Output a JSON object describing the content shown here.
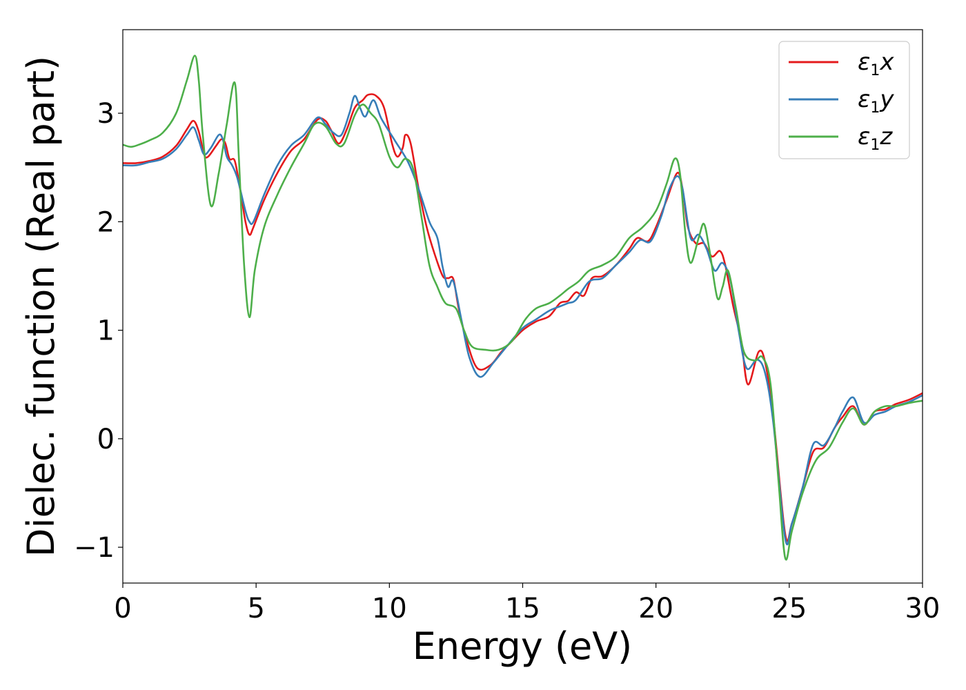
{
  "chart_data": {
    "type": "line",
    "xlabel": "Energy (eV)",
    "ylabel": "Dielec. function (Real part)",
    "xlim": [
      0,
      30
    ],
    "ylim": [
      -1.33,
      3.77
    ],
    "xticks": [
      0,
      5,
      10,
      15,
      20,
      25,
      30
    ],
    "yticks": [
      -1,
      0,
      1,
      2,
      3
    ],
    "grid": false,
    "legend_position": "top-right",
    "series": [
      {
        "name": "ε1x",
        "legend": {
          "sym": "ε",
          "sub": "1",
          "var": "x"
        },
        "color": "#e41a1c",
        "points": [
          [
            0,
            2.54
          ],
          [
            0.5,
            2.54
          ],
          [
            1,
            2.56
          ],
          [
            1.5,
            2.6
          ],
          [
            2,
            2.7
          ],
          [
            2.4,
            2.85
          ],
          [
            2.65,
            2.93
          ],
          [
            2.85,
            2.83
          ],
          [
            3.05,
            2.62
          ],
          [
            3.2,
            2.6
          ],
          [
            3.5,
            2.7
          ],
          [
            3.7,
            2.76
          ],
          [
            3.85,
            2.72
          ],
          [
            4,
            2.58
          ],
          [
            4.2,
            2.56
          ],
          [
            4.4,
            2.3
          ],
          [
            4.6,
            2.0
          ],
          [
            4.75,
            1.88
          ],
          [
            4.9,
            1.95
          ],
          [
            5.3,
            2.2
          ],
          [
            5.8,
            2.45
          ],
          [
            6.3,
            2.65
          ],
          [
            6.8,
            2.76
          ],
          [
            7.3,
            2.94
          ],
          [
            7.6,
            2.93
          ],
          [
            7.8,
            2.85
          ],
          [
            8.1,
            2.72
          ],
          [
            8.4,
            2.85
          ],
          [
            8.7,
            3.05
          ],
          [
            9,
            3.12
          ],
          [
            9.2,
            3.17
          ],
          [
            9.5,
            3.16
          ],
          [
            9.8,
            3.05
          ],
          [
            10.1,
            2.72
          ],
          [
            10.3,
            2.6
          ],
          [
            10.5,
            2.68
          ],
          [
            10.6,
            2.8
          ],
          [
            10.8,
            2.72
          ],
          [
            11.1,
            2.3
          ],
          [
            11.4,
            1.95
          ],
          [
            11.7,
            1.7
          ],
          [
            12.0,
            1.5
          ],
          [
            12.2,
            1.48
          ],
          [
            12.4,
            1.47
          ],
          [
            12.6,
            1.2
          ],
          [
            12.9,
            0.9
          ],
          [
            13.3,
            0.65
          ],
          [
            13.8,
            0.68
          ],
          [
            14.2,
            0.8
          ],
          [
            14.6,
            0.9
          ],
          [
            15,
            1.0
          ],
          [
            15.5,
            1.08
          ],
          [
            16,
            1.13
          ],
          [
            16.4,
            1.25
          ],
          [
            16.7,
            1.27
          ],
          [
            17,
            1.35
          ],
          [
            17.3,
            1.32
          ],
          [
            17.6,
            1.48
          ],
          [
            18.0,
            1.5
          ],
          [
            18.5,
            1.6
          ],
          [
            19.0,
            1.75
          ],
          [
            19.3,
            1.85
          ],
          [
            19.7,
            1.82
          ],
          [
            20.0,
            1.95
          ],
          [
            20.4,
            2.2
          ],
          [
            20.8,
            2.45
          ],
          [
            21.0,
            2.3
          ],
          [
            21.2,
            1.95
          ],
          [
            21.5,
            1.8
          ],
          [
            21.8,
            1.8
          ],
          [
            22.1,
            1.68
          ],
          [
            22.4,
            1.73
          ],
          [
            22.6,
            1.6
          ],
          [
            22.9,
            1.22
          ],
          [
            23.2,
            0.9
          ],
          [
            23.45,
            0.5
          ],
          [
            23.85,
            0.8
          ],
          [
            24.1,
            0.7
          ],
          [
            24.4,
            0.2
          ],
          [
            24.85,
            -0.88
          ],
          [
            25.1,
            -0.78
          ],
          [
            25.5,
            -0.45
          ],
          [
            25.9,
            -0.12
          ],
          [
            26.3,
            -0.08
          ],
          [
            26.7,
            0.1
          ],
          [
            27.0,
            0.2
          ],
          [
            27.4,
            0.3
          ],
          [
            27.8,
            0.13
          ],
          [
            28.2,
            0.25
          ],
          [
            28.6,
            0.27
          ],
          [
            29,
            0.32
          ],
          [
            29.5,
            0.36
          ],
          [
            30,
            0.42
          ]
        ]
      },
      {
        "name": "ε1y",
        "legend": {
          "sym": "ε",
          "sub": "1",
          "var": "y"
        },
        "color": "#377eb8",
        "points": [
          [
            0,
            2.52
          ],
          [
            0.5,
            2.52
          ],
          [
            1,
            2.55
          ],
          [
            1.5,
            2.58
          ],
          [
            2,
            2.67
          ],
          [
            2.4,
            2.8
          ],
          [
            2.65,
            2.87
          ],
          [
            2.85,
            2.75
          ],
          [
            3.05,
            2.62
          ],
          [
            3.3,
            2.68
          ],
          [
            3.6,
            2.8
          ],
          [
            3.75,
            2.76
          ],
          [
            3.9,
            2.6
          ],
          [
            4.1,
            2.52
          ],
          [
            4.3,
            2.4
          ],
          [
            4.6,
            2.1
          ],
          [
            4.75,
            2.0
          ],
          [
            4.9,
            2.0
          ],
          [
            5.3,
            2.25
          ],
          [
            5.8,
            2.52
          ],
          [
            6.3,
            2.7
          ],
          [
            6.8,
            2.8
          ],
          [
            7.3,
            2.96
          ],
          [
            7.6,
            2.9
          ],
          [
            7.9,
            2.82
          ],
          [
            8.2,
            2.8
          ],
          [
            8.5,
            3.0
          ],
          [
            8.7,
            3.16
          ],
          [
            8.9,
            3.05
          ],
          [
            9.1,
            2.97
          ],
          [
            9.4,
            3.12
          ],
          [
            9.7,
            2.95
          ],
          [
            10.2,
            2.75
          ],
          [
            10.7,
            2.55
          ],
          [
            11.1,
            2.3
          ],
          [
            11.5,
            2.0
          ],
          [
            11.8,
            1.85
          ],
          [
            12.0,
            1.58
          ],
          [
            12.2,
            1.4
          ],
          [
            12.4,
            1.45
          ],
          [
            12.7,
            1.1
          ],
          [
            13.0,
            0.75
          ],
          [
            13.4,
            0.57
          ],
          [
            13.9,
            0.7
          ],
          [
            14.4,
            0.85
          ],
          [
            15,
            1.02
          ],
          [
            15.5,
            1.1
          ],
          [
            16,
            1.18
          ],
          [
            16.4,
            1.22
          ],
          [
            16.7,
            1.25
          ],
          [
            17,
            1.28
          ],
          [
            17.5,
            1.45
          ],
          [
            18.0,
            1.48
          ],
          [
            18.5,
            1.6
          ],
          [
            19.0,
            1.72
          ],
          [
            19.4,
            1.83
          ],
          [
            19.8,
            1.82
          ],
          [
            20.2,
            2.05
          ],
          [
            20.5,
            2.3
          ],
          [
            20.8,
            2.42
          ],
          [
            21.0,
            2.3
          ],
          [
            21.3,
            1.85
          ],
          [
            21.6,
            1.88
          ],
          [
            21.9,
            1.75
          ],
          [
            22.2,
            1.55
          ],
          [
            22.5,
            1.62
          ],
          [
            22.8,
            1.45
          ],
          [
            23.1,
            1.0
          ],
          [
            23.4,
            0.65
          ],
          [
            23.8,
            0.73
          ],
          [
            24.1,
            0.6
          ],
          [
            24.4,
            0.15
          ],
          [
            24.85,
            -0.92
          ],
          [
            25.1,
            -0.78
          ],
          [
            25.5,
            -0.45
          ],
          [
            25.9,
            -0.05
          ],
          [
            26.3,
            -0.06
          ],
          [
            26.7,
            0.1
          ],
          [
            27.0,
            0.25
          ],
          [
            27.4,
            0.38
          ],
          [
            27.8,
            0.15
          ],
          [
            28.2,
            0.22
          ],
          [
            28.6,
            0.25
          ],
          [
            29,
            0.3
          ],
          [
            29.5,
            0.34
          ],
          [
            30,
            0.4
          ]
        ]
      },
      {
        "name": "ε1z",
        "legend": {
          "sym": "ε",
          "sub": "1",
          "var": "z"
        },
        "color": "#4daf4a",
        "points": [
          [
            0,
            2.71
          ],
          [
            0.3,
            2.69
          ],
          [
            0.6,
            2.71
          ],
          [
            1.0,
            2.75
          ],
          [
            1.5,
            2.82
          ],
          [
            2.0,
            3.0
          ],
          [
            2.4,
            3.3
          ],
          [
            2.7,
            3.53
          ],
          [
            2.85,
            3.3
          ],
          [
            3.0,
            2.8
          ],
          [
            3.3,
            2.15
          ],
          [
            3.6,
            2.45
          ],
          [
            3.9,
            2.9
          ],
          [
            4.2,
            3.28
          ],
          [
            4.35,
            2.6
          ],
          [
            4.55,
            1.6
          ],
          [
            4.75,
            1.12
          ],
          [
            4.95,
            1.55
          ],
          [
            5.3,
            1.95
          ],
          [
            5.8,
            2.25
          ],
          [
            6.3,
            2.5
          ],
          [
            6.8,
            2.72
          ],
          [
            7.2,
            2.9
          ],
          [
            7.6,
            2.88
          ],
          [
            8.0,
            2.72
          ],
          [
            8.3,
            2.72
          ],
          [
            8.7,
            2.98
          ],
          [
            9.0,
            3.08
          ],
          [
            9.3,
            3.0
          ],
          [
            9.6,
            2.9
          ],
          [
            10.0,
            2.6
          ],
          [
            10.3,
            2.5
          ],
          [
            10.6,
            2.58
          ],
          [
            10.9,
            2.48
          ],
          [
            11.2,
            2.05
          ],
          [
            11.5,
            1.6
          ],
          [
            11.8,
            1.4
          ],
          [
            12.1,
            1.25
          ],
          [
            12.5,
            1.2
          ],
          [
            12.8,
            1.0
          ],
          [
            13.1,
            0.85
          ],
          [
            13.6,
            0.82
          ],
          [
            14.1,
            0.82
          ],
          [
            14.6,
            0.9
          ],
          [
            15.1,
            1.1
          ],
          [
            15.5,
            1.2
          ],
          [
            16,
            1.25
          ],
          [
            16.4,
            1.32
          ],
          [
            16.7,
            1.38
          ],
          [
            17.1,
            1.45
          ],
          [
            17.5,
            1.55
          ],
          [
            18.0,
            1.6
          ],
          [
            18.5,
            1.68
          ],
          [
            19.0,
            1.85
          ],
          [
            19.5,
            1.95
          ],
          [
            20.0,
            2.1
          ],
          [
            20.4,
            2.35
          ],
          [
            20.7,
            2.58
          ],
          [
            20.9,
            2.45
          ],
          [
            21.1,
            1.9
          ],
          [
            21.3,
            1.62
          ],
          [
            21.6,
            1.85
          ],
          [
            21.8,
            1.98
          ],
          [
            22.0,
            1.75
          ],
          [
            22.3,
            1.3
          ],
          [
            22.5,
            1.4
          ],
          [
            22.7,
            1.55
          ],
          [
            23.0,
            1.2
          ],
          [
            23.3,
            0.8
          ],
          [
            23.7,
            0.72
          ],
          [
            24.0,
            0.75
          ],
          [
            24.3,
            0.5
          ],
          [
            24.6,
            -0.4
          ],
          [
            24.85,
            -1.1
          ],
          [
            25.1,
            -0.85
          ],
          [
            25.5,
            -0.5
          ],
          [
            26.0,
            -0.2
          ],
          [
            26.5,
            -0.08
          ],
          [
            27.0,
            0.15
          ],
          [
            27.4,
            0.28
          ],
          [
            27.8,
            0.13
          ],
          [
            28.2,
            0.25
          ],
          [
            28.6,
            0.3
          ],
          [
            29,
            0.3
          ],
          [
            29.5,
            0.33
          ],
          [
            30,
            0.35
          ]
        ]
      }
    ]
  }
}
